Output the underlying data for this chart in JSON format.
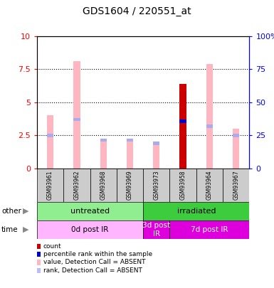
{
  "title": "GDS1604 / 220551_at",
  "samples": [
    "GSM93961",
    "GSM93962",
    "GSM93968",
    "GSM93969",
    "GSM93973",
    "GSM93958",
    "GSM93964",
    "GSM93967"
  ],
  "pink_bar_heights": [
    4.0,
    8.1,
    2.2,
    2.2,
    2.0,
    2.0,
    7.9,
    3.0
  ],
  "light_blue_marker_heights": [
    2.5,
    3.7,
    2.15,
    2.15,
    1.9,
    3.55,
    3.2,
    2.5
  ],
  "red_bar_heights": [
    0,
    0,
    0,
    0,
    0,
    6.4,
    0,
    0
  ],
  "blue_marker_heights": [
    0,
    0,
    0,
    0,
    0,
    3.55,
    0,
    0
  ],
  "ylim": [
    0,
    10
  ],
  "y2lim": [
    0,
    100
  ],
  "yticks": [
    0,
    2.5,
    5,
    7.5,
    10
  ],
  "y2ticks": [
    0,
    25,
    50,
    75,
    100
  ],
  "other_groups": [
    {
      "label": "untreated",
      "start": 0,
      "end": 4,
      "color": "#90EE90"
    },
    {
      "label": "irradiated",
      "start": 4,
      "end": 8,
      "color": "#3DCC3D"
    }
  ],
  "time_groups": [
    {
      "label": "0d post IR",
      "start": 0,
      "end": 4,
      "color": "#FFB6FF"
    },
    {
      "label": "3d post\nIR",
      "start": 4,
      "end": 5,
      "color": "#DD00DD"
    },
    {
      "label": "7d post IR",
      "start": 5,
      "end": 8,
      "color": "#DD00DD"
    }
  ],
  "legend_items": [
    {
      "color": "#CC0000",
      "label": "count"
    },
    {
      "color": "#0000CC",
      "label": "percentile rank within the sample"
    },
    {
      "color": "#FFB6C1",
      "label": "value, Detection Call = ABSENT"
    },
    {
      "color": "#BBBBFF",
      "label": "rank, Detection Call = ABSENT"
    }
  ],
  "pink_color": "#FFB6C1",
  "light_blue_color": "#AAAAEE",
  "red_color": "#CC0000",
  "blue_color": "#0000CC",
  "bar_width": 0.25
}
